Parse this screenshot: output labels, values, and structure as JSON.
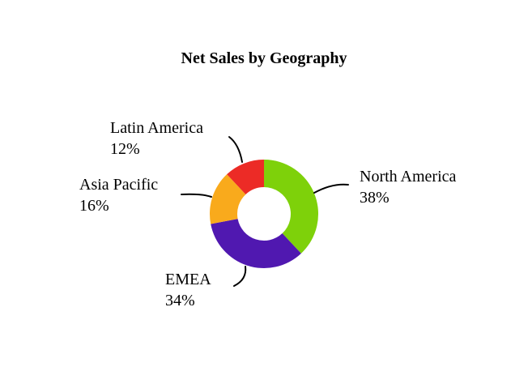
{
  "chart_data": {
    "type": "pie",
    "variant": "donut",
    "title": "Net Sales by Geography",
    "categories": [
      "North America",
      "EMEA",
      "Asia Pacific",
      "Latin America"
    ],
    "values": [
      38,
      34,
      16,
      12
    ],
    "value_labels": [
      "38%",
      "34%",
      "16%",
      "12%"
    ],
    "colors": [
      "#7ed10a",
      "#5018b0",
      "#f9aa1c",
      "#ec2b26"
    ],
    "start": "12 o'clock",
    "direction": "clockwise",
    "legend": "none",
    "labels": "outside with leader lines"
  }
}
